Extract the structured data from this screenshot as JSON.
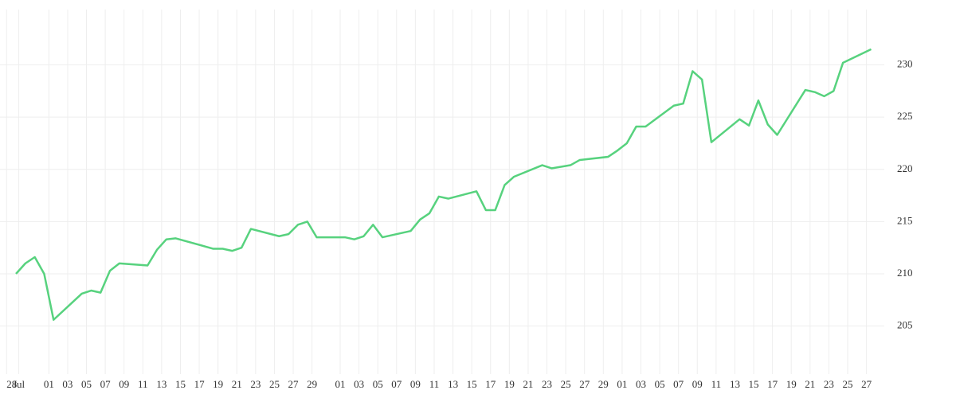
{
  "chart_data": {
    "type": "line",
    "x": [
      0,
      1,
      2,
      3,
      4,
      7,
      8,
      9,
      10,
      11,
      14,
      15,
      16,
      17,
      21,
      22,
      23,
      24,
      25,
      28,
      29,
      30,
      31,
      32,
      35,
      36,
      37,
      38,
      39,
      42,
      43,
      44,
      45,
      46,
      49,
      50,
      51,
      52,
      53,
      56,
      57,
      59,
      60,
      63,
      64,
      65,
      66,
      67,
      70,
      71,
      72,
      73,
      74,
      77,
      78,
      79,
      80,
      81,
      84,
      85,
      86,
      87,
      88,
      91
    ],
    "series": [
      {
        "color": "#57d27e",
        "values": [
          210.0,
          211.0,
          211.6,
          210.0,
          205.6,
          208.1,
          208.4,
          208.2,
          210.3,
          211.0,
          210.8,
          212.3,
          213.3,
          213.4,
          212.4,
          212.4,
          212.2,
          212.5,
          214.3,
          213.6,
          213.8,
          214.7,
          215.0,
          213.5,
          213.5,
          213.3,
          213.6,
          214.7,
          213.5,
          214.1,
          215.2,
          215.8,
          217.4,
          217.2,
          217.9,
          216.1,
          216.1,
          218.5,
          219.3,
          220.4,
          220.1,
          220.4,
          220.9,
          221.2,
          221.8,
          222.5,
          224.1,
          224.1,
          226.1,
          226.3,
          229.4,
          228.6,
          222.6,
          224.8,
          224.2,
          226.6,
          224.3,
          223.3,
          227.6,
          227.4,
          227.0,
          227.5,
          230.2,
          231.5
        ]
      }
    ],
    "xlim": [
      -1.7,
      92.4
    ],
    "xticks": [
      {
        "value": -1,
        "label": "28"
      },
      {
        "value": 0.3,
        "label": "Jul"
      },
      {
        "value": 3.5,
        "label": "01"
      },
      {
        "value": 5.5,
        "label": "03"
      },
      {
        "value": 7.5,
        "label": "05"
      },
      {
        "value": 9.5,
        "label": "07"
      },
      {
        "value": 11.5,
        "label": "09"
      },
      {
        "value": 13.5,
        "label": "11"
      },
      {
        "value": 15.5,
        "label": "13"
      },
      {
        "value": 17.5,
        "label": "15"
      },
      {
        "value": 19.5,
        "label": "17"
      },
      {
        "value": 21.5,
        "label": "19"
      },
      {
        "value": 23.5,
        "label": "21"
      },
      {
        "value": 25.5,
        "label": "23"
      },
      {
        "value": 27.5,
        "label": "25"
      },
      {
        "value": 29.5,
        "label": "27"
      },
      {
        "value": 31.5,
        "label": "29"
      },
      {
        "value": 34.5,
        "label": "01"
      },
      {
        "value": 36.5,
        "label": "03"
      },
      {
        "value": 38.5,
        "label": "05"
      },
      {
        "value": 40.5,
        "label": "07"
      },
      {
        "value": 42.5,
        "label": "09"
      },
      {
        "value": 44.5,
        "label": "11"
      },
      {
        "value": 46.5,
        "label": "13"
      },
      {
        "value": 48.5,
        "label": "15"
      },
      {
        "value": 50.5,
        "label": "17"
      },
      {
        "value": 52.5,
        "label": "19"
      },
      {
        "value": 54.5,
        "label": "21"
      },
      {
        "value": 56.5,
        "label": "23"
      },
      {
        "value": 58.5,
        "label": "25"
      },
      {
        "value": 60.5,
        "label": "27"
      },
      {
        "value": 62.5,
        "label": "29"
      },
      {
        "value": 64.5,
        "label": "01"
      },
      {
        "value": 66.5,
        "label": "03"
      },
      {
        "value": 68.5,
        "label": "05"
      },
      {
        "value": 70.5,
        "label": "07"
      },
      {
        "value": 72.5,
        "label": "09"
      },
      {
        "value": 74.5,
        "label": "11"
      },
      {
        "value": 76.5,
        "label": "13"
      },
      {
        "value": 78.5,
        "label": "15"
      },
      {
        "value": 80.5,
        "label": "17"
      },
      {
        "value": 82.5,
        "label": "19"
      },
      {
        "value": 84.5,
        "label": "21"
      },
      {
        "value": 86.5,
        "label": "23"
      },
      {
        "value": 88.5,
        "label": "25"
      },
      {
        "value": 90.5,
        "label": "27"
      }
    ],
    "ylim": [
      200.4,
      235.3
    ],
    "yticks": [
      205,
      210,
      215,
      220,
      225,
      230
    ],
    "grid": true
  }
}
